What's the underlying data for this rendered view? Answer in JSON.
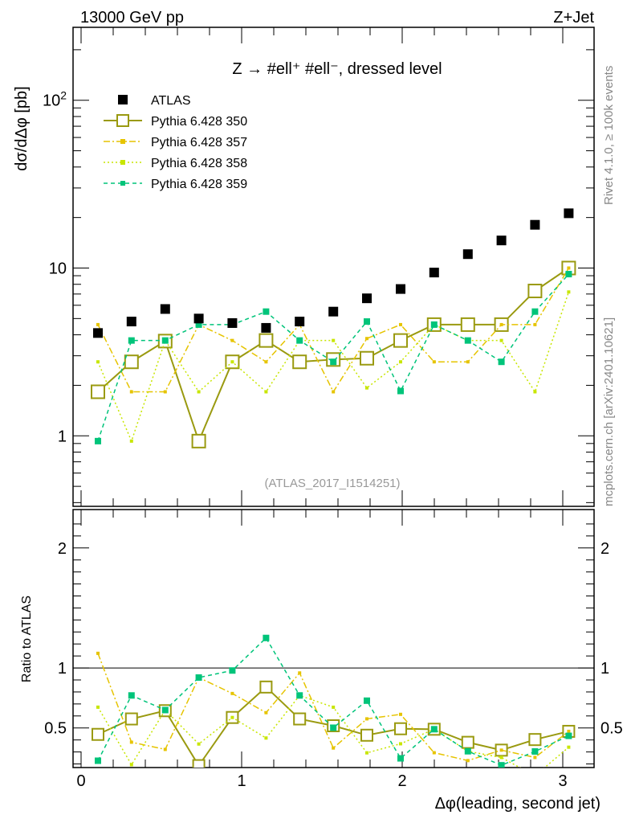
{
  "header": {
    "left": "13000 GeV pp",
    "right": "Z+Jet"
  },
  "side_labels": {
    "rivet": "Rivet 4.1.0, ≥ 100k events",
    "mcplots": "mcplots.cern.ch [arXiv:2401.10621]"
  },
  "watermark": "(ATLAS_2017_I1514251)",
  "chart_data": {
    "type": "scatter",
    "title": "Z → #ell⁺ #ell⁻, dressed level",
    "xlabel": "Δφ(leading, second jet)",
    "ylabel": "dσ/dΔφ [pb]",
    "ratio_ylabel": "Ratio to ATLAS",
    "yscale": "log",
    "xlim": [
      -0.05,
      3.195
    ],
    "ylim": [
      0.38,
      272
    ],
    "ratio_ylim": [
      0.17,
      2.32
    ],
    "x_ticks": [
      "0",
      "1",
      "2",
      "3"
    ],
    "y_ticks": [
      "1",
      "10",
      "10^2"
    ],
    "ratio_ticks": [
      "0.5",
      "1",
      "2"
    ],
    "legend_position": "top-left",
    "x": [
      0.105,
      0.314,
      0.524,
      0.733,
      0.942,
      1.152,
      1.361,
      1.571,
      1.78,
      1.99,
      2.199,
      2.409,
      2.618,
      2.827,
      3.037
    ],
    "series": [
      {
        "name": "ATLAS",
        "color": "#000000",
        "style": "data",
        "values": [
          4.1,
          4.8,
          5.7,
          5.0,
          4.7,
          4.4,
          4.8,
          5.5,
          6.6,
          7.5,
          9.4,
          12.1,
          14.6,
          18.1,
          21.2
        ]
      },
      {
        "name": "Pythia 6.428 350",
        "color": "#9a9a10",
        "style": "solid",
        "values": [
          1.83,
          2.76,
          3.67,
          0.93,
          2.76,
          3.7,
          2.76,
          2.85,
          2.9,
          3.7,
          4.6,
          4.6,
          4.6,
          7.3,
          10.0
        ]
      },
      {
        "name": "Pythia 6.428 357",
        "color": "#e6c400",
        "style": "dashdot",
        "values": [
          4.6,
          1.83,
          1.83,
          4.6,
          3.7,
          2.76,
          4.6,
          1.83,
          3.8,
          4.6,
          2.76,
          2.76,
          4.6,
          4.6,
          10.0
        ]
      },
      {
        "name": "Pythia 6.428 358",
        "color": "#c8e600",
        "style": "dotted",
        "values": [
          2.76,
          0.93,
          3.7,
          1.83,
          2.76,
          1.83,
          3.7,
          3.7,
          1.93,
          2.76,
          4.6,
          3.7,
          3.7,
          1.83,
          7.2
        ]
      },
      {
        "name": "Pythia 6.428 359",
        "color": "#00c47a",
        "style": "dashed",
        "values": [
          0.93,
          3.7,
          3.7,
          4.6,
          4.6,
          5.5,
          3.7,
          2.76,
          4.8,
          1.85,
          4.6,
          3.7,
          2.76,
          5.5,
          9.2
        ]
      }
    ]
  }
}
